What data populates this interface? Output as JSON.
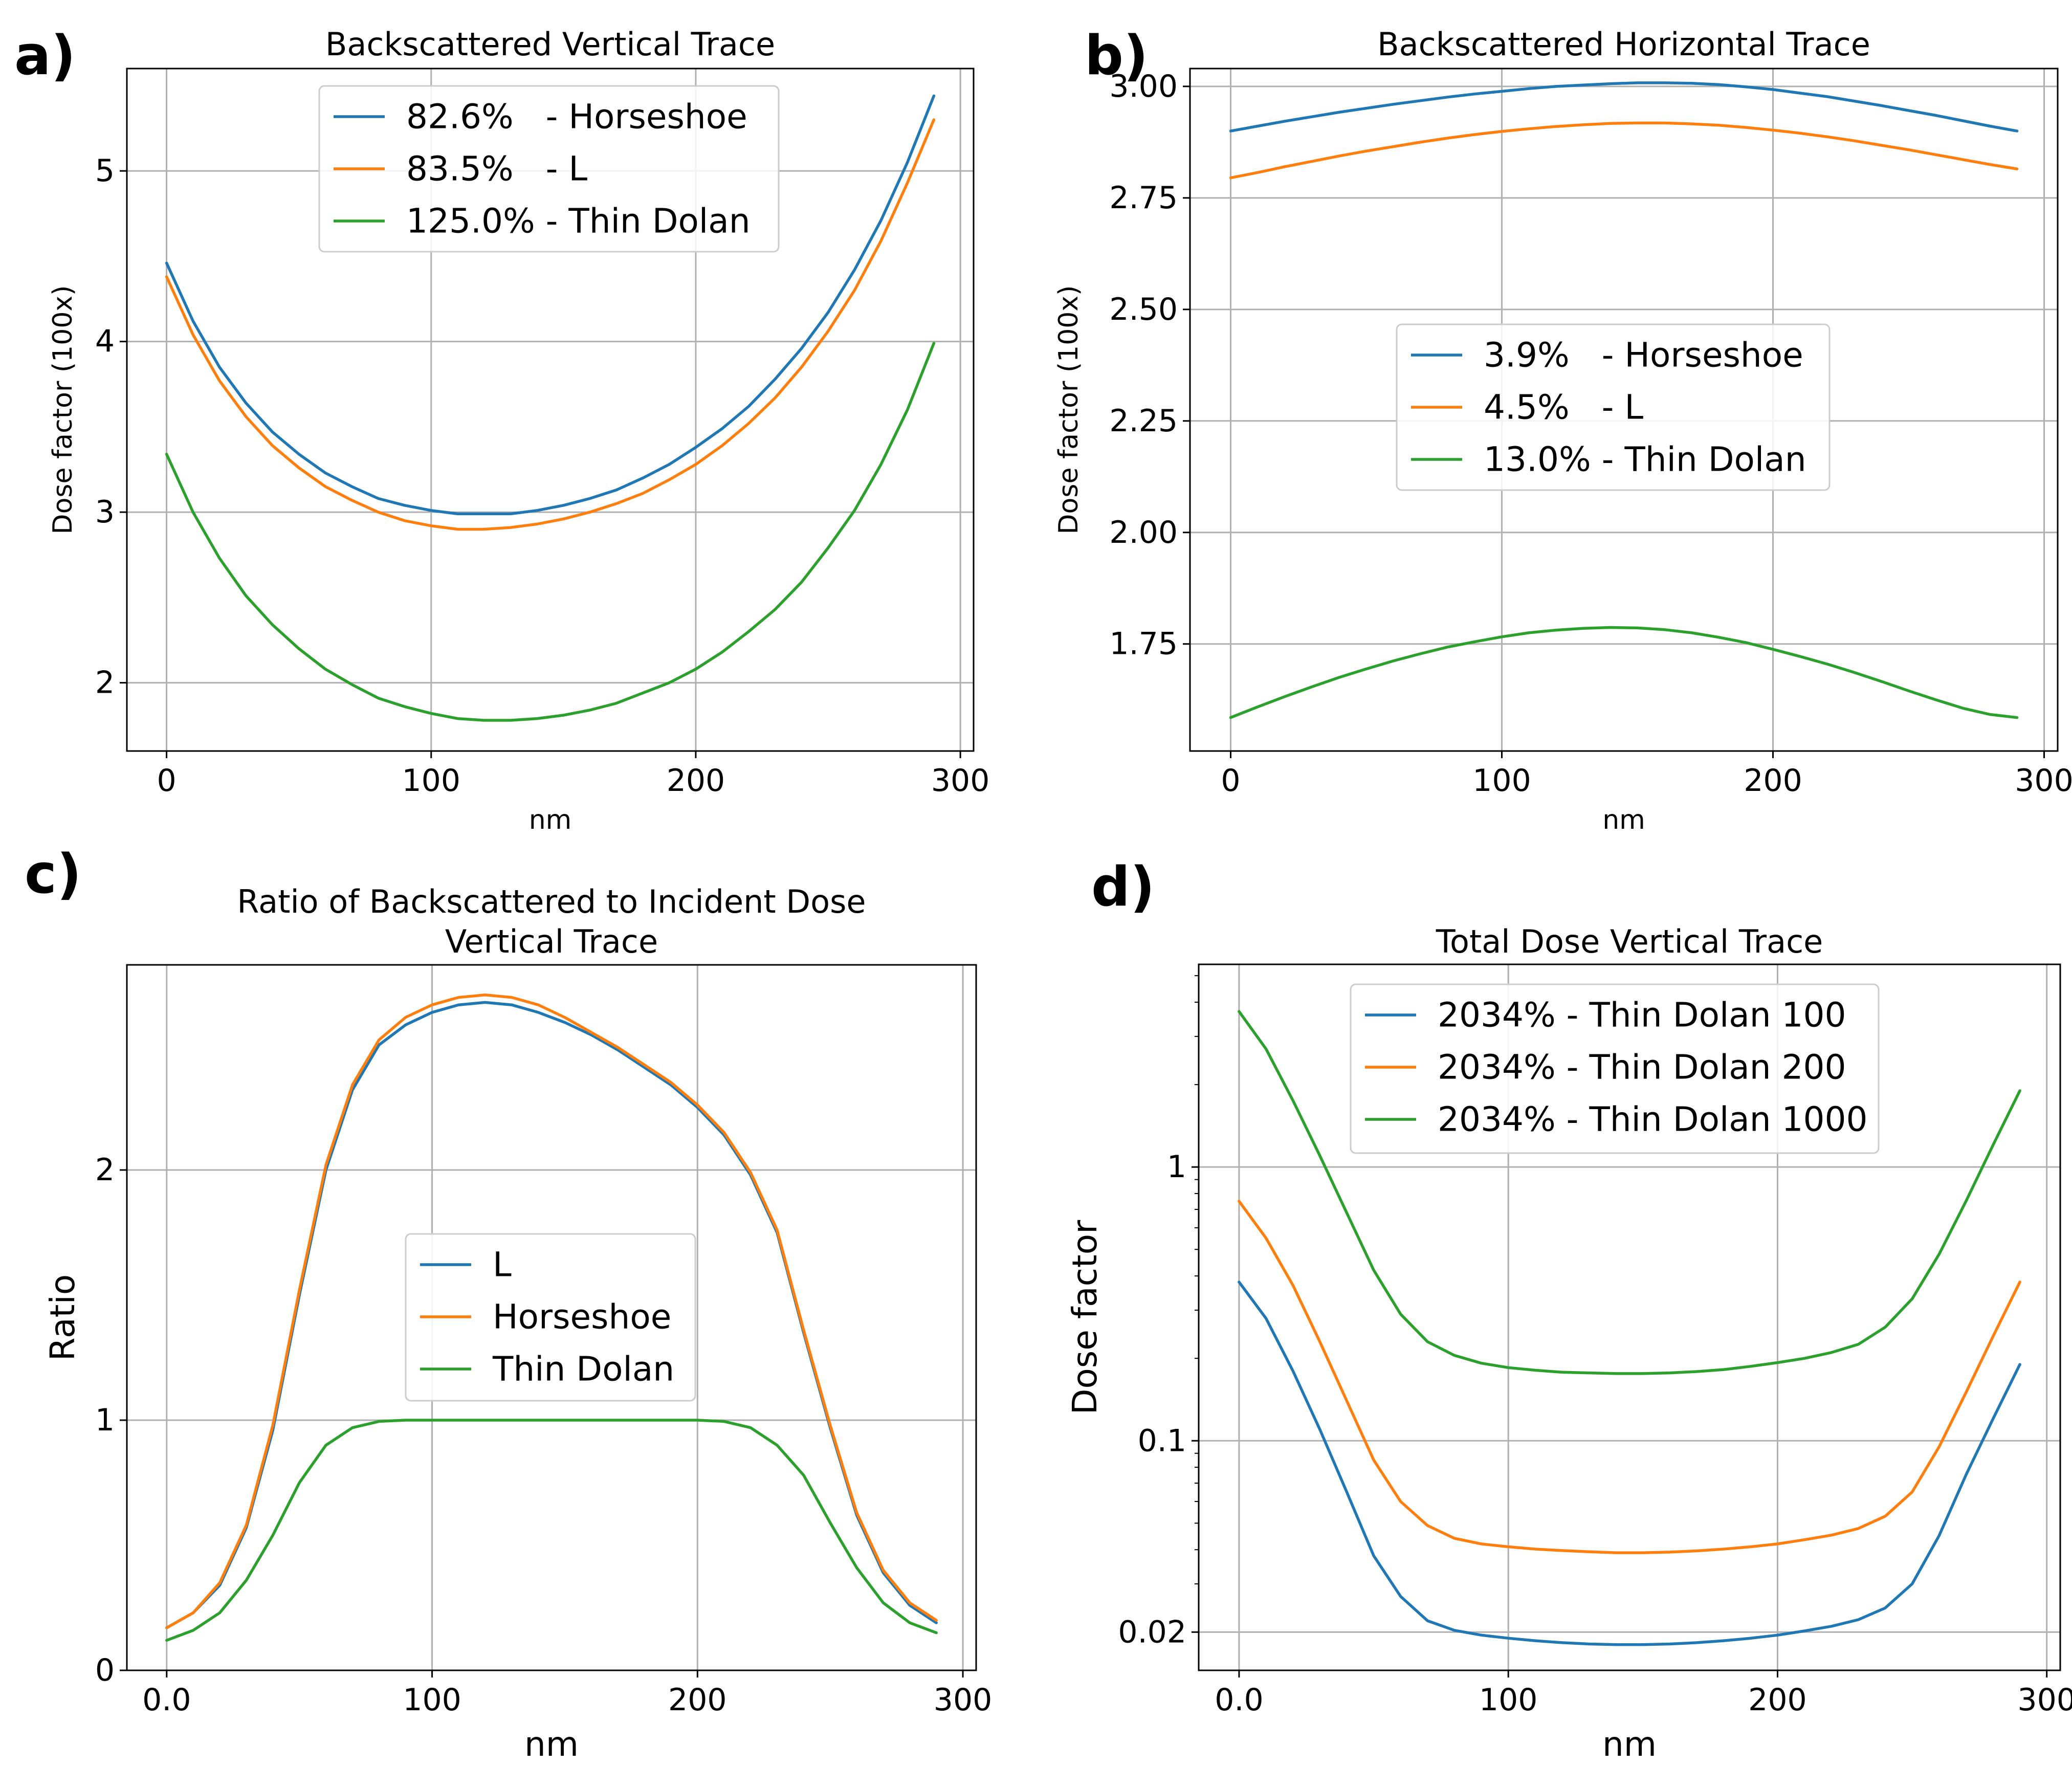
{
  "colors": {
    "blue": "#1f77b4",
    "orange": "#ff7f0e",
    "green": "#2ca02c"
  },
  "chart_data": [
    {
      "id": "a",
      "panel_label": "a)",
      "type": "line",
      "title": "Backscattered Vertical Trace",
      "title_lines": [
        "Backscattered Vertical Trace"
      ],
      "xlabel": "nm",
      "ylabel": "Dose factor (100x)",
      "xlim": [
        -15,
        305
      ],
      "ylim": [
        1.6,
        5.6
      ],
      "yscale": "linear",
      "grid": true,
      "legend_position": "upper-center",
      "xticks": [
        {
          "v": 0,
          "label": "0"
        },
        {
          "v": 100,
          "label": "100"
        },
        {
          "v": 200,
          "label": "200"
        },
        {
          "v": 300,
          "label": "300"
        }
      ],
      "yticks": [
        {
          "v": 2,
          "label": "2"
        },
        {
          "v": 3,
          "label": "3"
        },
        {
          "v": 4,
          "label": "4"
        },
        {
          "v": 5,
          "label": "5"
        }
      ],
      "x": [
        0,
        10,
        20,
        30,
        40,
        50,
        60,
        70,
        80,
        90,
        100,
        110,
        120,
        130,
        140,
        150,
        160,
        170,
        180,
        190,
        200,
        210,
        220,
        230,
        240,
        250,
        260,
        270,
        280,
        290
      ],
      "series": [
        {
          "name": "82.6%   - Horseshoe",
          "color": "blue",
          "values": [
            4.46,
            4.12,
            3.85,
            3.64,
            3.47,
            3.34,
            3.23,
            3.15,
            3.08,
            3.04,
            3.01,
            2.99,
            2.99,
            2.99,
            3.01,
            3.04,
            3.08,
            3.13,
            3.2,
            3.28,
            3.38,
            3.49,
            3.62,
            3.78,
            3.96,
            4.17,
            4.42,
            4.71,
            5.05,
            5.44
          ]
        },
        {
          "name": "83.5%   - L",
          "color": "orange",
          "values": [
            4.38,
            4.04,
            3.77,
            3.56,
            3.39,
            3.26,
            3.15,
            3.07,
            3.0,
            2.95,
            2.92,
            2.9,
            2.9,
            2.91,
            2.93,
            2.96,
            3.0,
            3.05,
            3.11,
            3.19,
            3.28,
            3.39,
            3.52,
            3.67,
            3.85,
            4.06,
            4.3,
            4.59,
            4.93,
            5.3
          ]
        },
        {
          "name": "125.0% - Thin Dolan",
          "color": "green",
          "values": [
            3.34,
            3.0,
            2.73,
            2.51,
            2.34,
            2.2,
            2.08,
            1.99,
            1.91,
            1.86,
            1.82,
            1.79,
            1.78,
            1.78,
            1.79,
            1.81,
            1.84,
            1.88,
            1.94,
            2.0,
            2.08,
            2.18,
            2.3,
            2.43,
            2.59,
            2.79,
            3.01,
            3.28,
            3.6,
            3.99
          ]
        }
      ]
    },
    {
      "id": "b",
      "panel_label": "b)",
      "type": "line",
      "title": "Backscattered Horizontal Trace",
      "title_lines": [
        "Backscattered Horizontal Trace"
      ],
      "xlabel": "nm",
      "ylabel": "Dose factor (100x)",
      "xlim": [
        -15,
        305
      ],
      "ylim": [
        1.51,
        3.04
      ],
      "yscale": "linear",
      "grid": true,
      "legend_position": "center",
      "xticks": [
        {
          "v": 0,
          "label": "0"
        },
        {
          "v": 100,
          "label": "100"
        },
        {
          "v": 200,
          "label": "200"
        },
        {
          "v": 300,
          "label": "300"
        }
      ],
      "yticks": [
        {
          "v": 1.75,
          "label": "1.75"
        },
        {
          "v": 2.0,
          "label": "2.00"
        },
        {
          "v": 2.25,
          "label": "2.25"
        },
        {
          "v": 2.5,
          "label": "2.50"
        },
        {
          "v": 2.75,
          "label": "2.75"
        },
        {
          "v": 3.0,
          "label": "3.00"
        }
      ],
      "x": [
        0,
        10,
        20,
        30,
        40,
        50,
        60,
        70,
        80,
        90,
        100,
        110,
        120,
        130,
        140,
        150,
        160,
        170,
        180,
        190,
        200,
        210,
        220,
        230,
        240,
        250,
        260,
        270,
        280,
        290
      ],
      "series": [
        {
          "name": "3.9%   - Horseshoe",
          "color": "blue",
          "values": [
            2.9,
            2.911,
            2.922,
            2.932,
            2.942,
            2.951,
            2.96,
            2.968,
            2.976,
            2.983,
            2.989,
            2.995,
            3.0,
            3.003,
            3.006,
            3.008,
            3.008,
            3.007,
            3.004,
            2.999,
            2.993,
            2.985,
            2.977,
            2.967,
            2.957,
            2.946,
            2.935,
            2.923,
            2.911,
            2.9
          ]
        },
        {
          "name": "4.5%   - L",
          "color": "orange",
          "values": [
            2.795,
            2.807,
            2.82,
            2.832,
            2.844,
            2.855,
            2.865,
            2.875,
            2.884,
            2.892,
            2.899,
            2.905,
            2.91,
            2.914,
            2.917,
            2.918,
            2.918,
            2.916,
            2.913,
            2.908,
            2.902,
            2.895,
            2.887,
            2.878,
            2.868,
            2.858,
            2.847,
            2.836,
            2.825,
            2.815
          ]
        },
        {
          "name": "13.0% - Thin Dolan",
          "color": "green",
          "values": [
            1.585,
            1.609,
            1.632,
            1.654,
            1.675,
            1.694,
            1.712,
            1.728,
            1.743,
            1.755,
            1.766,
            1.775,
            1.781,
            1.785,
            1.787,
            1.786,
            1.782,
            1.775,
            1.765,
            1.753,
            1.738,
            1.722,
            1.705,
            1.686,
            1.666,
            1.645,
            1.625,
            1.606,
            1.592,
            1.585
          ]
        }
      ]
    },
    {
      "id": "c",
      "panel_label": "c)",
      "type": "line",
      "title": "Ratio of Backscattered to Incident Dose Vertical Trace",
      "title_lines": [
        "Ratio of Backscattered to Incident Dose",
        "Vertical Trace"
      ],
      "xlabel": "nm",
      "ylabel": "Ratio",
      "xlim": [
        -15,
        305
      ],
      "ylim": [
        0,
        2.82
      ],
      "yscale": "linear",
      "grid": true,
      "legend_position": "center",
      "xticks": [
        {
          "v": 0,
          "label": "0.0"
        },
        {
          "v": 100,
          "label": "100"
        },
        {
          "v": 200,
          "label": "200"
        },
        {
          "v": 300,
          "label": "300"
        }
      ],
      "yticks": [
        {
          "v": 0,
          "label": "0"
        },
        {
          "v": 1,
          "label": "1"
        },
        {
          "v": 2,
          "label": "2"
        }
      ],
      "x": [
        0,
        10,
        20,
        30,
        40,
        50,
        60,
        70,
        80,
        90,
        100,
        110,
        120,
        130,
        140,
        150,
        160,
        170,
        180,
        190,
        200,
        210,
        220,
        230,
        240,
        250,
        260,
        270,
        280,
        290
      ],
      "baseline": 0,
      "series": [
        {
          "name": "L",
          "color": "blue",
          "values": [
            0.17,
            0.23,
            0.34,
            0.57,
            0.96,
            1.5,
            2.0,
            2.32,
            2.5,
            2.58,
            2.63,
            2.66,
            2.67,
            2.66,
            2.63,
            2.59,
            2.54,
            2.48,
            2.41,
            2.34,
            2.25,
            2.14,
            1.98,
            1.75,
            1.35,
            0.97,
            0.62,
            0.39,
            0.26,
            0.19
          ]
        },
        {
          "name": "Horseshoe",
          "color": "orange",
          "values": [
            0.17,
            0.23,
            0.35,
            0.58,
            0.98,
            1.52,
            2.02,
            2.34,
            2.52,
            2.61,
            2.66,
            2.69,
            2.7,
            2.69,
            2.66,
            2.61,
            2.55,
            2.49,
            2.42,
            2.35,
            2.26,
            2.15,
            1.99,
            1.76,
            1.36,
            0.98,
            0.63,
            0.4,
            0.27,
            0.2
          ]
        },
        {
          "name": "Thin Dolan",
          "color": "green",
          "values": [
            0.12,
            0.16,
            0.23,
            0.36,
            0.54,
            0.75,
            0.9,
            0.97,
            0.995,
            1.0,
            1.0,
            1.0,
            1.0,
            1.0,
            1.0,
            1.0,
            1.0,
            1.0,
            1.0,
            1.0,
            1.0,
            0.995,
            0.97,
            0.9,
            0.78,
            0.59,
            0.41,
            0.27,
            0.19,
            0.15
          ]
        }
      ]
    },
    {
      "id": "d",
      "panel_label": "d)",
      "type": "line",
      "title": "Total Dose Vertical Trace",
      "title_lines": [
        "Total Dose Vertical Trace"
      ],
      "xlabel": "nm",
      "ylabel": "Dose factor",
      "xlim": [
        -15,
        305
      ],
      "ylim": [
        0.0145,
        5.5
      ],
      "yscale": "log",
      "grid": true,
      "legend_position": "upper-center",
      "xticks": [
        {
          "v": 0,
          "label": "0.0"
        },
        {
          "v": 100,
          "label": "100"
        },
        {
          "v": 200,
          "label": "200"
        },
        {
          "v": 300,
          "label": "300"
        }
      ],
      "yticks": [
        {
          "v": 0.02,
          "label": "0.02"
        },
        {
          "v": 0.1,
          "label": "0.1"
        },
        {
          "v": 1,
          "label": "1"
        }
      ],
      "yminor": [
        0.03,
        0.04,
        0.05,
        0.06,
        0.07,
        0.08,
        0.09,
        0.2,
        0.3,
        0.4,
        0.5,
        0.6,
        0.7,
        0.8,
        0.9,
        2,
        3,
        4,
        5
      ],
      "x": [
        0,
        10,
        20,
        30,
        40,
        50,
        60,
        70,
        80,
        90,
        100,
        110,
        120,
        130,
        140,
        150,
        160,
        170,
        180,
        190,
        200,
        210,
        220,
        230,
        240,
        250,
        260,
        270,
        280,
        290
      ],
      "series": [
        {
          "name": "2034% - Thin Dolan 100",
          "color": "blue",
          "values": [
            0.38,
            0.28,
            0.18,
            0.11,
            0.065,
            0.038,
            0.027,
            0.022,
            0.0203,
            0.0195,
            0.019,
            0.0186,
            0.0183,
            0.0181,
            0.018,
            0.018,
            0.0181,
            0.0183,
            0.0186,
            0.019,
            0.0195,
            0.0202,
            0.021,
            0.0222,
            0.0245,
            0.03,
            0.045,
            0.075,
            0.12,
            0.19
          ]
        },
        {
          "name": "2034% - Thin Dolan 200",
          "color": "orange",
          "values": [
            0.75,
            0.55,
            0.37,
            0.23,
            0.14,
            0.085,
            0.06,
            0.049,
            0.044,
            0.042,
            0.041,
            0.0402,
            0.0397,
            0.0393,
            0.039,
            0.039,
            0.0392,
            0.0396,
            0.0402,
            0.041,
            0.042,
            0.0435,
            0.0452,
            0.0478,
            0.053,
            0.065,
            0.095,
            0.15,
            0.24,
            0.38
          ]
        },
        {
          "name": "2034% - Thin Dolan 1000",
          "color": "green",
          "values": [
            3.7,
            2.7,
            1.75,
            1.1,
            0.68,
            0.42,
            0.29,
            0.23,
            0.205,
            0.192,
            0.185,
            0.181,
            0.178,
            0.177,
            0.176,
            0.176,
            0.177,
            0.179,
            0.182,
            0.187,
            0.193,
            0.2,
            0.21,
            0.225,
            0.26,
            0.33,
            0.48,
            0.75,
            1.2,
            1.9
          ]
        }
      ]
    }
  ]
}
